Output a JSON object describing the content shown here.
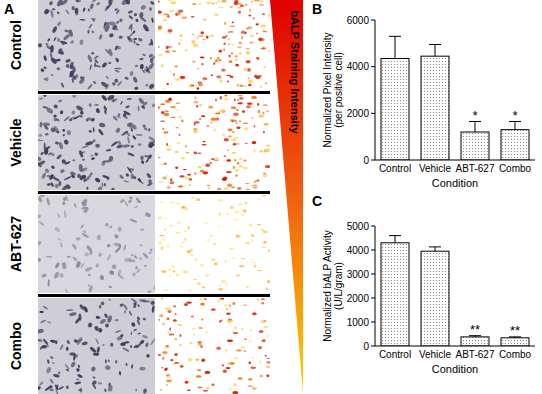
{
  "chart_data": [
    {
      "type": "bar",
      "title": "B",
      "x_label": "Condition",
      "y_label": [
        "Normalized Pixel Intensity",
        "(per positive cell)"
      ],
      "categories": [
        "Control",
        "Vehicle",
        "ABT-627",
        "Combo"
      ],
      "values": [
        4350,
        4450,
        1200,
        1300
      ],
      "errors": [
        950,
        500,
        450,
        350
      ],
      "significance": [
        null,
        null,
        "*",
        "*"
      ],
      "ylim": [
        0,
        6000
      ],
      "yticks": [
        0,
        2000,
        4000,
        6000
      ],
      "grid": false
    },
    {
      "type": "bar",
      "title": "C",
      "x_label": "Condition",
      "y_label": [
        "Normalized bALP Activity",
        "(U/L/gram)"
      ],
      "categories": [
        "Control",
        "Vehicle",
        "ABT-627",
        "Combo"
      ],
      "values": [
        4300,
        3950,
        380,
        340
      ],
      "errors": [
        300,
        180,
        50,
        40
      ],
      "significance": [
        null,
        null,
        "**",
        "**"
      ],
      "ylim": [
        0,
        5000
      ],
      "yticks": [
        0,
        1000,
        2000,
        3000,
        4000,
        5000
      ],
      "grid": false
    }
  ],
  "panel_a": {
    "label": "A",
    "rows": [
      "Control",
      "Vehicle",
      "ABT-627",
      "Combo"
    ],
    "scale_label": "bALP Staining Intensity"
  }
}
